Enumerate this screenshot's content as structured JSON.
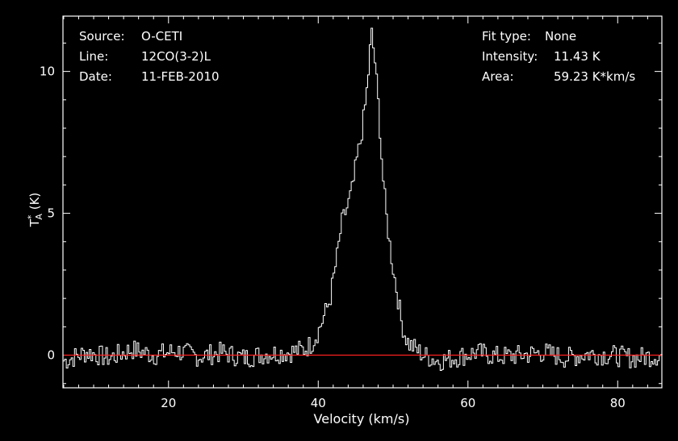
{
  "header_left": {
    "source_label": "Source:",
    "source_value": "O-CETI",
    "line_label": "Line:",
    "line_value": "12CO(3-2)L",
    "date_label": "Date:",
    "date_value": "11-FEB-2010"
  },
  "header_right": {
    "fit_label": "Fit type:",
    "fit_value": "None",
    "intensity_label": "Intensity:",
    "intensity_value": "11.43 K",
    "area_label": "Area:",
    "area_value": "59.23 K*km/s"
  },
  "colors": {
    "background": "#000000",
    "frame": "#ffffff",
    "spectrum": "#ffffff",
    "baseline": "#ff2020"
  },
  "chart_data": {
    "type": "line",
    "xlabel": "Velocity (km/s)",
    "ylabel_main": "T",
    "ylabel_sup": "*",
    "ylabel_sub": "A",
    "ylabel_unit": "(K)",
    "xlim": [
      5.9,
      85.9
    ],
    "ylim": [
      -1.15,
      11.95
    ],
    "xticks": [
      20,
      40,
      60,
      80
    ],
    "yticks": [
      0,
      5,
      10
    ],
    "baseline": 0,
    "grid": false,
    "series": [
      {
        "x": [
          6.0,
          9.0,
          12.0,
          15.0,
          18.0,
          21.0,
          24.0,
          27.0,
          30.0,
          33.0,
          36.0,
          38.0,
          39.0,
          40.0,
          41.0,
          41.5,
          42.0,
          42.5,
          43.0,
          43.5,
          44.0,
          44.5,
          45.0,
          45.5,
          46.0,
          46.5,
          47.0,
          47.5,
          48.0,
          48.5,
          49.0,
          49.5,
          50.0,
          50.5,
          51.0,
          51.5,
          52.0,
          53.0,
          54.0,
          55.0,
          56.0,
          58.0,
          61.0,
          64.0,
          67.0,
          70.0,
          73.0,
          76.0,
          79.0,
          82.0,
          85.8
        ],
        "y": [
          -0.2,
          0.1,
          -0.1,
          0.2,
          0.0,
          0.15,
          -0.05,
          0.1,
          -0.1,
          0.05,
          0.1,
          0.2,
          0.4,
          0.9,
          1.6,
          2.0,
          2.8,
          3.6,
          4.6,
          5.0,
          5.4,
          5.9,
          6.8,
          7.5,
          8.4,
          9.6,
          11.4,
          10.3,
          8.6,
          6.4,
          4.9,
          3.8,
          2.9,
          2.1,
          1.2,
          0.7,
          0.4,
          0.2,
          0.0,
          -0.1,
          -0.2,
          -0.1,
          0.1,
          -0.05,
          0.0,
          0.1,
          -0.1,
          0.05,
          0.0,
          -0.1,
          0.0
        ]
      }
    ]
  }
}
